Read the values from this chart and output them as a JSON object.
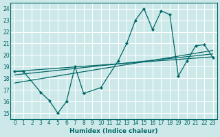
{
  "xlabel": "Humidex (Indice chaleur)",
  "bg_color": "#cce8e8",
  "grid_color": "#ffffff",
  "line_color": "#006666",
  "xlim": [
    -0.5,
    23.5
  ],
  "ylim": [
    14.5,
    24.5
  ],
  "xticks": [
    0,
    1,
    2,
    3,
    4,
    5,
    6,
    7,
    8,
    9,
    10,
    11,
    12,
    13,
    14,
    15,
    16,
    17,
    18,
    19,
    20,
    21,
    22,
    23
  ],
  "yticks": [
    15,
    16,
    17,
    18,
    19,
    20,
    21,
    22,
    23,
    24
  ],
  "zigzag_x": [
    0,
    1,
    3,
    4,
    5,
    6,
    7,
    8,
    10,
    12,
    13,
    14,
    15,
    16,
    17,
    18,
    19,
    20,
    21,
    22,
    23
  ],
  "zigzag_y": [
    18.6,
    18.6,
    16.8,
    16.1,
    15.0,
    16.0,
    19.0,
    16.7,
    17.2,
    19.5,
    21.0,
    23.0,
    24.0,
    22.2,
    23.8,
    23.5,
    18.2,
    19.5,
    20.8,
    20.9,
    19.8
  ],
  "trend_lines": [
    {
      "x": [
        0,
        23
      ],
      "y": [
        18.6,
        19.85
      ]
    },
    {
      "x": [
        0,
        23
      ],
      "y": [
        18.3,
        20.1
      ]
    },
    {
      "x": [
        0,
        23
      ],
      "y": [
        17.6,
        20.4
      ]
    }
  ]
}
